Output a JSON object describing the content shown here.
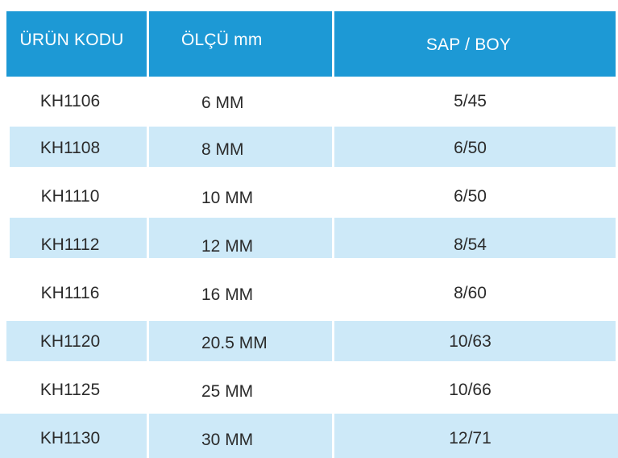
{
  "headers": {
    "code": "ÜRÜN KODU",
    "size": "ÖLÇÜ mm",
    "sap_boy": "SAP / BOY"
  },
  "rows": [
    {
      "code": "KH1106",
      "size": "6 MM",
      "sap_boy": "5/45"
    },
    {
      "code": "KH1108",
      "size": "8 MM",
      "sap_boy": "6/50"
    },
    {
      "code": "KH1110",
      "size": "10 MM",
      "sap_boy": "6/50"
    },
    {
      "code": "KH1112",
      "size": "12 MM",
      "sap_boy": "8/54"
    },
    {
      "code": "KH1116",
      "size": "16 MM",
      "sap_boy": "8/60"
    },
    {
      "code": "KH1120",
      "size": "20.5 MM",
      "sap_boy": "10/63"
    },
    {
      "code": "KH1125",
      "size": "25 MM",
      "sap_boy": "10/66"
    },
    {
      "code": "KH1130",
      "size": "30 MM",
      "sap_boy": "12/71"
    }
  ],
  "colors": {
    "header_bg": "#1d99d5",
    "stripe_bg": "#cde9f8",
    "text": "#2b2b2b"
  }
}
